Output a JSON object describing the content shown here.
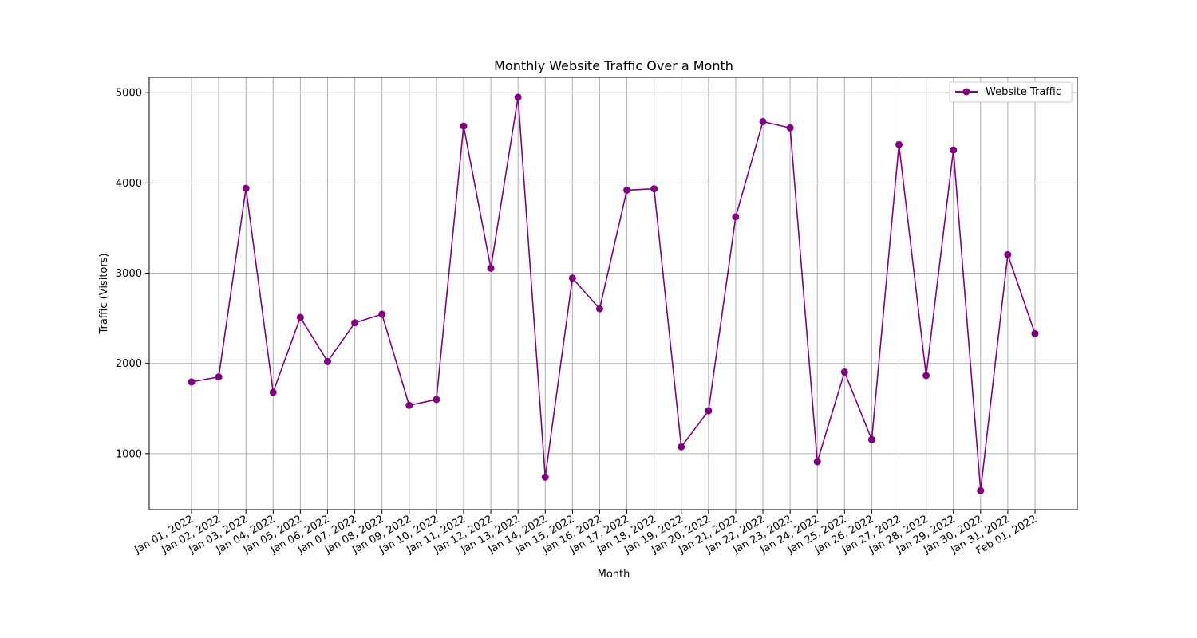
{
  "chart_data": {
    "type": "line",
    "title": "Monthly Website Traffic Over a Month",
    "xlabel": "Month",
    "ylabel": "Traffic (Visitors)",
    "x": [
      "Jan 01, 2022",
      "Jan 02, 2022",
      "Jan 03, 2022",
      "Jan 04, 2022",
      "Jan 05, 2022",
      "Jan 06, 2022",
      "Jan 07, 2022",
      "Jan 08, 2022",
      "Jan 09, 2022",
      "Jan 10, 2022",
      "Jan 11, 2022",
      "Jan 12, 2022",
      "Jan 13, 2022",
      "Jan 14, 2022",
      "Jan 15, 2022",
      "Jan 16, 2022",
      "Jan 17, 2022",
      "Jan 18, 2022",
      "Jan 19, 2022",
      "Jan 20, 2022",
      "Jan 21, 2022",
      "Jan 22, 2022",
      "Jan 23, 2022",
      "Jan 24, 2022",
      "Jan 25, 2022",
      "Jan 26, 2022",
      "Jan 27, 2022",
      "Jan 28, 2022",
      "Jan 29, 2022",
      "Jan 30, 2022",
      "Jan 31, 2022",
      "Feb 01, 2022"
    ],
    "series": [
      {
        "name": "Website Traffic",
        "color": "#800080",
        "marker": "circle",
        "values": [
          1795,
          1850,
          3940,
          1680,
          2510,
          2020,
          2450,
          2545,
          1535,
          1600,
          4630,
          3055,
          4950,
          740,
          2945,
          2605,
          3920,
          3935,
          1075,
          1475,
          3625,
          4680,
          4610,
          910,
          1905,
          1155,
          4425,
          1865,
          4365,
          590,
          3205,
          2330
        ]
      }
    ],
    "ylim": [
      380,
      5170
    ],
    "yticks": [
      1000,
      2000,
      3000,
      4000,
      5000
    ],
    "grid": true,
    "legend_position": "top-right"
  }
}
